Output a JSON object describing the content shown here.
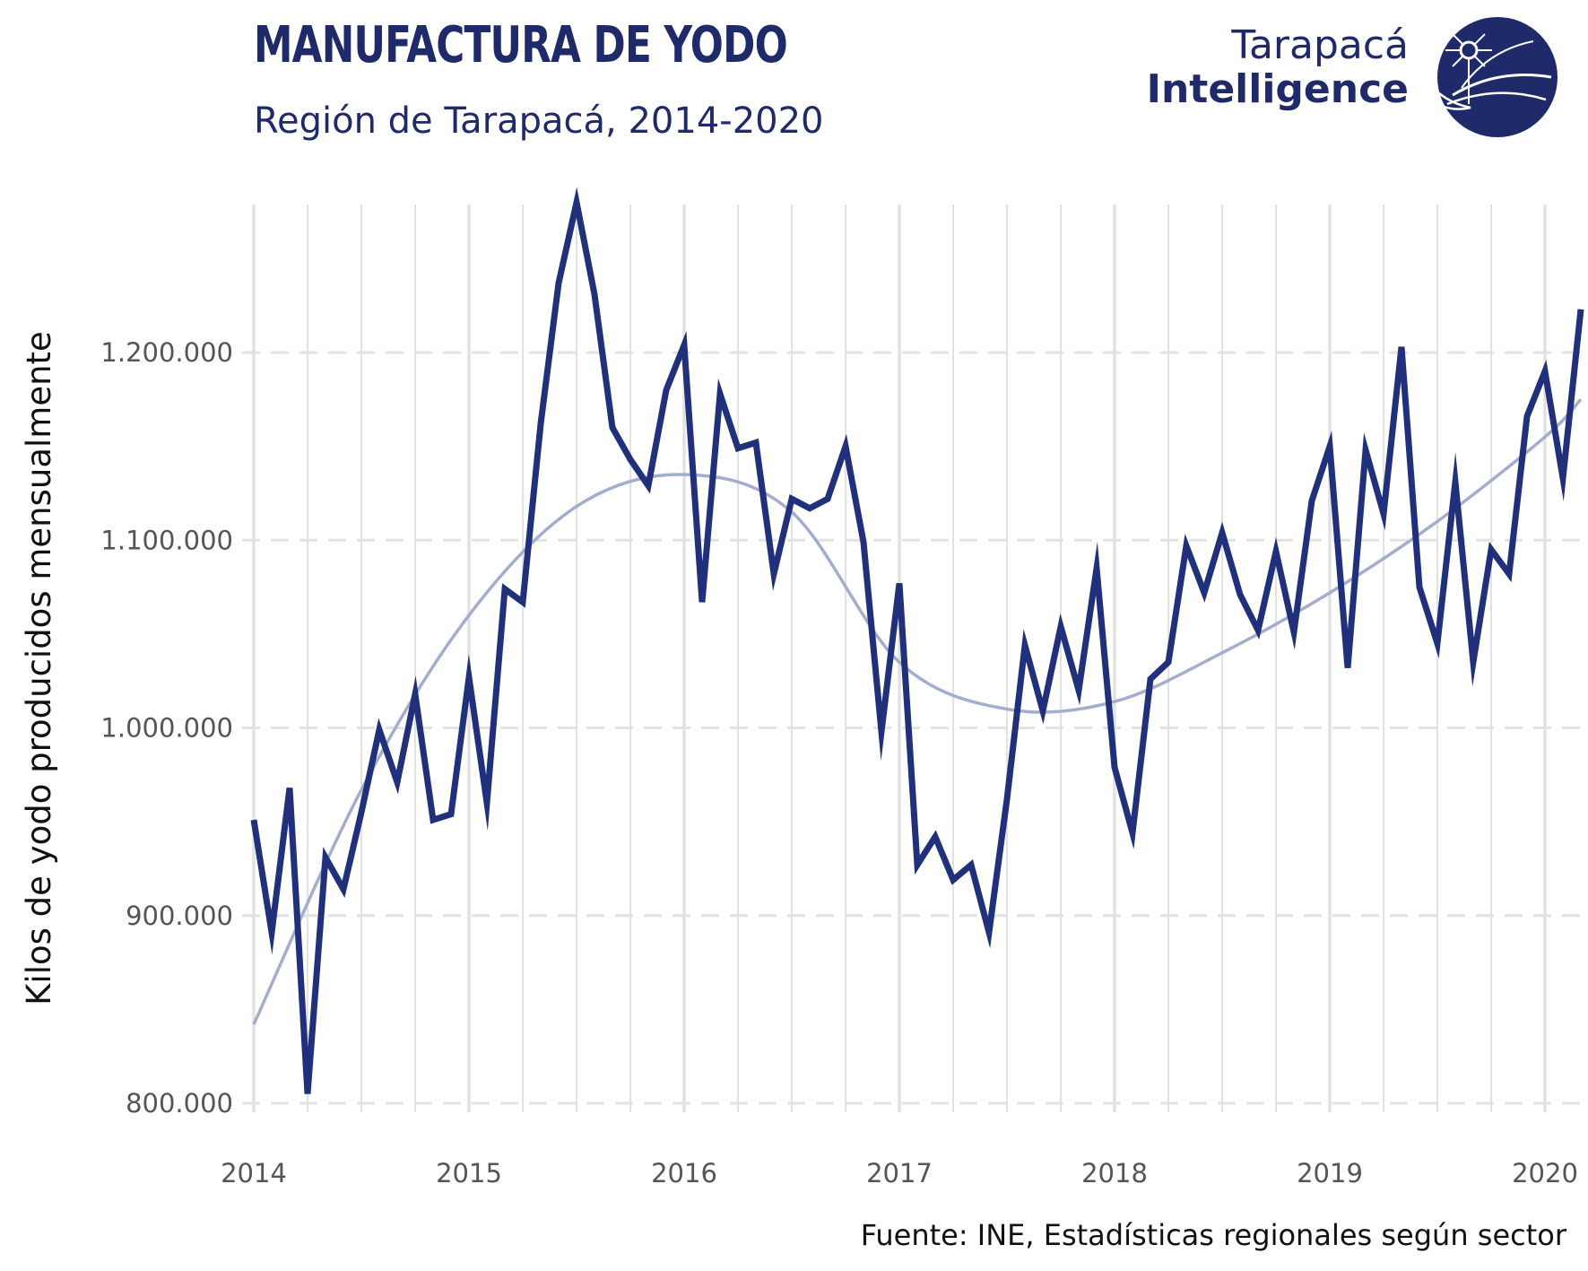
{
  "header": {
    "title": "MANUFACTURA DE YODO",
    "subtitle": "Región de Tarapacá, 2014-2020"
  },
  "brand": {
    "line1": "Tarapacá",
    "line2": "Intelligence",
    "logo_icon": "globe-compass-icon"
  },
  "footer": {
    "source": "Fuente: INE, Estadísticas regionales según sector"
  },
  "colors": {
    "series": "#21307a",
    "trend": "#a3adcd",
    "grid": "#e2e2e2",
    "text": "#1f2a6b"
  },
  "chart_data": {
    "type": "line",
    "title": "MANUFACTURA DE YODO",
    "subtitle": "Región de Tarapacá, 2014-2020",
    "xlabel": "",
    "ylabel": "Kilos de yodo producidos mensualmente",
    "ylim": [
      790000,
      1280000
    ],
    "xlim": [
      "2014-01",
      "2020-03"
    ],
    "yticks": [
      800000,
      900000,
      1000000,
      1100000,
      1200000
    ],
    "ytick_labels": [
      "800.000",
      "900.000",
      "1.000.000",
      "1.100.000",
      "1.200.000"
    ],
    "xtick_labels": [
      "2014",
      "2015",
      "2016",
      "2017",
      "2018",
      "2019",
      "2020"
    ],
    "grid": true,
    "legend": "none",
    "series": [
      {
        "x": [
          "2014-01",
          "2014-02",
          "2014-03",
          "2014-04",
          "2014-05",
          "2014-06",
          "2014-07",
          "2014-08",
          "2014-09",
          "2014-10",
          "2014-11",
          "2014-12",
          "2015-01",
          "2015-02",
          "2015-03",
          "2015-04",
          "2015-05",
          "2015-06",
          "2015-07",
          "2015-08",
          "2015-09",
          "2015-10",
          "2015-11",
          "2015-12",
          "2016-01",
          "2016-02",
          "2016-03",
          "2016-04",
          "2016-05",
          "2016-06",
          "2016-07",
          "2016-08",
          "2016-09",
          "2016-10",
          "2016-11",
          "2016-12",
          "2017-01",
          "2017-02",
          "2017-03",
          "2017-04",
          "2017-05",
          "2017-06",
          "2017-07",
          "2017-08",
          "2017-09",
          "2017-10",
          "2017-11",
          "2017-12",
          "2018-01",
          "2018-02",
          "2018-03",
          "2018-04",
          "2018-05",
          "2018-06",
          "2018-07",
          "2018-08",
          "2018-09",
          "2018-10",
          "2018-11",
          "2018-12",
          "2019-01",
          "2019-02",
          "2019-03",
          "2019-04",
          "2019-05",
          "2019-06",
          "2019-07",
          "2019-08",
          "2019-09",
          "2019-10",
          "2019-11",
          "2019-12",
          "2020-01",
          "2020-02",
          "2020-03"
        ],
        "values": [
          951000,
          891000,
          968000,
          805000,
          931000,
          914000,
          955000,
          999000,
          971000,
          1018000,
          951000,
          954000,
          1027000,
          960000,
          1074000,
          1067000,
          1162000,
          1237000,
          1280000,
          1231000,
          1160000,
          1143000,
          1129000,
          1180000,
          1204000,
          1067000,
          1178000,
          1149000,
          1152000,
          1082000,
          1122000,
          1117000,
          1122000,
          1150000,
          1099000,
          998000,
          1077000,
          927000,
          942000,
          919000,
          927000,
          891000,
          962000,
          1044000,
          1009000,
          1054000,
          1020000,
          1085000,
          979000,
          944000,
          1026000,
          1035000,
          1097000,
          1072000,
          1104000,
          1071000,
          1052000,
          1094000,
          1051000,
          1121000,
          1150000,
          1032000,
          1148000,
          1114000,
          1203000,
          1075000,
          1045000,
          1131000,
          1035000,
          1095000,
          1082000,
          1166000,
          1190000,
          1133000,
          1223000
        ]
      },
      {
        "x": [
          "2014-01",
          "2014-07",
          "2015-01",
          "2015-07",
          "2016-01",
          "2016-07",
          "2017-01",
          "2017-07",
          "2018-01",
          "2018-07",
          "2019-01",
          "2019-07",
          "2020-01",
          "2020-03"
        ],
        "values": [
          842000,
          967000,
          1060000,
          1118000,
          1135000,
          1115000,
          1035000,
          1010000,
          1014000,
          1040000,
          1072000,
          1110000,
          1155000,
          1175000
        ]
      }
    ]
  }
}
